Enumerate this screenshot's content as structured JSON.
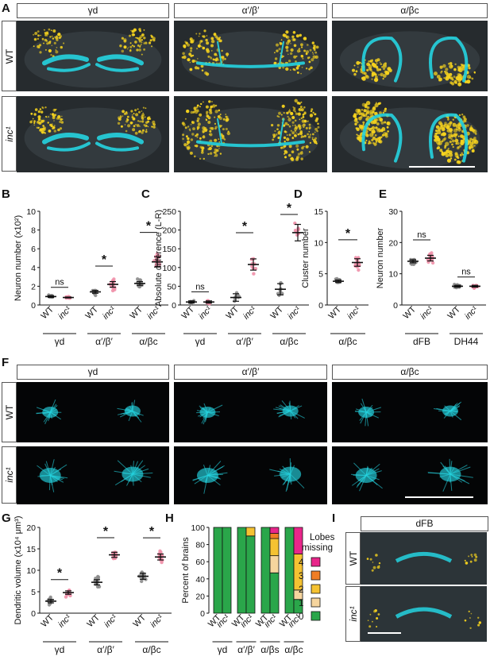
{
  "panels": {
    "A": {
      "label": "A",
      "columns": [
        "γd",
        "α′/β′",
        "α/βc"
      ],
      "rows": [
        "WT",
        "inc¹"
      ]
    },
    "B": {
      "label": "B"
    },
    "C": {
      "label": "C"
    },
    "D": {
      "label": "D"
    },
    "E": {
      "label": "E"
    },
    "F": {
      "label": "F",
      "columns": [
        "γd",
        "α′/β′",
        "α/βc"
      ],
      "rows": [
        "WT",
        "inc¹"
      ]
    },
    "G": {
      "label": "G"
    },
    "H": {
      "label": "H"
    },
    "I": {
      "label": "I",
      "title": "dFB",
      "rows": [
        "WT",
        "inc¹"
      ]
    }
  },
  "colors": {
    "wt": "#8c8c8c",
    "inc": "#ef8fa8",
    "cyan": "#25d4e0",
    "yellow": "#f5d21e"
  },
  "chart_data": [
    {
      "id": "B",
      "type": "scatter",
      "ylabel": "Neuron number (x10²)",
      "ylim": [
        0,
        10
      ],
      "yticks": [
        0,
        2,
        4,
        6,
        8,
        10
      ],
      "categories": [
        "WT",
        "inc¹",
        "WT",
        "inc¹",
        "WT",
        "inc¹"
      ],
      "groups": [
        "γd",
        "α′/β′",
        "α/βc"
      ],
      "means": [
        0.9,
        0.8,
        1.4,
        2.2,
        2.3,
        4.6
      ],
      "sem": [
        0.1,
        0.05,
        0.15,
        0.3,
        0.2,
        0.55
      ],
      "significance": [
        {
          "pair": [
            0,
            1
          ],
          "label": "ns"
        },
        {
          "pair": [
            2,
            3
          ],
          "label": "*"
        },
        {
          "pair": [
            4,
            5
          ],
          "label": "*"
        }
      ]
    },
    {
      "id": "C",
      "type": "scatter",
      "ylabel": "Absolute difference (L-R)",
      "ylim": [
        0,
        250
      ],
      "yticks": [
        0,
        50,
        100,
        150,
        200,
        250
      ],
      "categories": [
        "WT",
        "inc¹",
        "WT",
        "inc¹",
        "WT",
        "inc¹"
      ],
      "groups": [
        "γd",
        "α′/β′",
        "α/βc"
      ],
      "means": [
        8,
        8,
        20,
        108,
        42,
        193
      ],
      "sem": [
        3,
        3,
        10,
        15,
        15,
        22
      ],
      "significance": [
        {
          "pair": [
            0,
            1
          ],
          "label": "ns"
        },
        {
          "pair": [
            2,
            3
          ],
          "label": "*"
        },
        {
          "pair": [
            4,
            5
          ],
          "label": "*"
        }
      ]
    },
    {
      "id": "D",
      "type": "scatter",
      "ylabel": "Cluster number",
      "ylim": [
        0,
        15
      ],
      "yticks": [
        0,
        5,
        10,
        15
      ],
      "categories": [
        "WT",
        "inc¹"
      ],
      "groups": [
        "α/βc"
      ],
      "means": [
        3.8,
        6.8
      ],
      "sem": [
        0.2,
        0.6
      ],
      "significance": [
        {
          "pair": [
            0,
            1
          ],
          "label": "*"
        }
      ]
    },
    {
      "id": "E",
      "type": "scatter",
      "ylabel": "Neuron number",
      "ylim": [
        0,
        30
      ],
      "yticks": [
        0,
        10,
        20,
        30
      ],
      "categories": [
        "WT",
        "inc¹",
        "WT",
        "inc¹"
      ],
      "groups": [
        "dFB",
        "DH44"
      ],
      "means": [
        14,
        15,
        6,
        6
      ],
      "sem": [
        0.5,
        0.9,
        0.3,
        0.3
      ],
      "significance": [
        {
          "pair": [
            0,
            1
          ],
          "label": "ns"
        },
        {
          "pair": [
            2,
            3
          ],
          "label": "ns"
        }
      ]
    },
    {
      "id": "G",
      "type": "scatter",
      "ylabel": "Dendritic volume (x10⁴ μm³)",
      "ylim": [
        0,
        20
      ],
      "yticks": [
        0,
        5,
        10,
        15,
        20
      ],
      "categories": [
        "WT",
        "inc¹",
        "WT",
        "inc¹",
        "WT",
        "inc¹"
      ],
      "groups": [
        "γd",
        "α′/β′",
        "α/βc"
      ],
      "means": [
        2.8,
        4.8,
        7.2,
        13.6,
        8.6,
        13.1
      ],
      "sem": [
        0.4,
        0.4,
        0.6,
        0.6,
        0.7,
        0.7
      ],
      "significance": [
        {
          "pair": [
            0,
            1
          ],
          "label": "*"
        },
        {
          "pair": [
            2,
            3
          ],
          "label": "*"
        },
        {
          "pair": [
            4,
            5
          ],
          "label": "*"
        }
      ]
    },
    {
      "id": "H",
      "type": "bar",
      "ylabel": "Percent of brains",
      "ylim": [
        0,
        100
      ],
      "yticks": [
        0,
        20,
        40,
        60,
        80,
        100
      ],
      "categories": [
        "WT",
        "inc¹",
        "WT",
        "inc¹",
        "WT",
        "inc¹",
        "WT",
        "inc¹"
      ],
      "groups": [
        "γd",
        "α′/β′",
        "α/βs",
        "α/βc"
      ],
      "legend_title": "Lobes missing",
      "legend": [
        "4",
        "3",
        "2",
        "1",
        "0"
      ],
      "stack_colors": {
        "0": "#2aa64a",
        "1": "#f6d59e",
        "2": "#f5c232",
        "3": "#f07d24",
        "4": "#e8268a"
      },
      "stacks": [
        {
          "0": 100
        },
        {
          "0": 100
        },
        {
          "0": 100
        },
        {
          "0": 90,
          "2": 10
        },
        {
          "0": 100
        },
        {
          "0": 47,
          "1": 20,
          "2": 20,
          "3": 6,
          "4": 7
        },
        {
          "0": 100
        },
        {
          "0": 16,
          "1": 11,
          "2": 42,
          "4": 31
        }
      ]
    }
  ]
}
